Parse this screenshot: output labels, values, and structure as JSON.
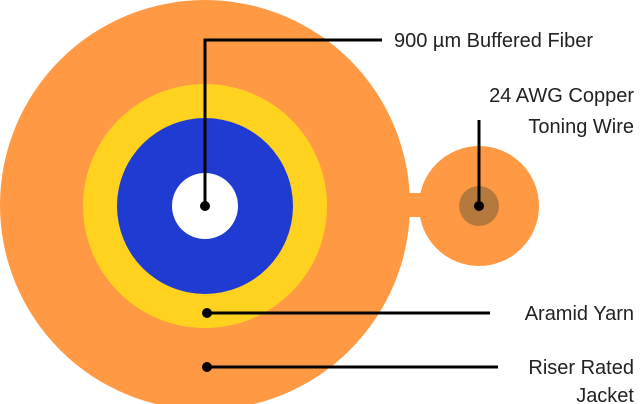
{
  "diagram": {
    "labels": {
      "buffered_fiber": "900 µm Buffered Fiber",
      "copper_wire_line1": "24 AWG Copper",
      "copper_wire_line2": "Toning Wire",
      "aramid_yarn": "Aramid Yarn",
      "jacket_line1": "Riser Rated",
      "jacket_line2": "Jacket"
    },
    "colors": {
      "jacket": "#FF9944",
      "aramid_yarn": "#FFD21F",
      "buffer": "#1F3BD1",
      "fiber_core": "#FFFFFF",
      "copper": "#B5793D",
      "leader_line": "#000000"
    }
  }
}
